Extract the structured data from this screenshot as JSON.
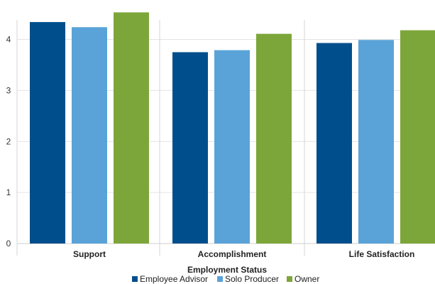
{
  "chart_data": {
    "type": "bar",
    "categories": [
      "Support",
      "Accomplishment",
      "Life Satisfaction"
    ],
    "series": [
      {
        "name": "Employee Advisor",
        "color": "#004f8c",
        "values": [
          4.34,
          3.75,
          3.93
        ]
      },
      {
        "name": "Solo Producer",
        "color": "#5aa3d8",
        "values": [
          4.24,
          3.79,
          3.99
        ]
      },
      {
        "name": "Owner",
        "color": "#7da63a",
        "values": [
          4.53,
          4.11,
          4.18
        ]
      }
    ],
    "yticks": [
      0,
      1,
      2,
      3,
      4
    ],
    "ylim": [
      0,
      4.55
    ],
    "legend": {
      "title": "Employment Status",
      "placement": "bottom"
    },
    "grid": true
  }
}
